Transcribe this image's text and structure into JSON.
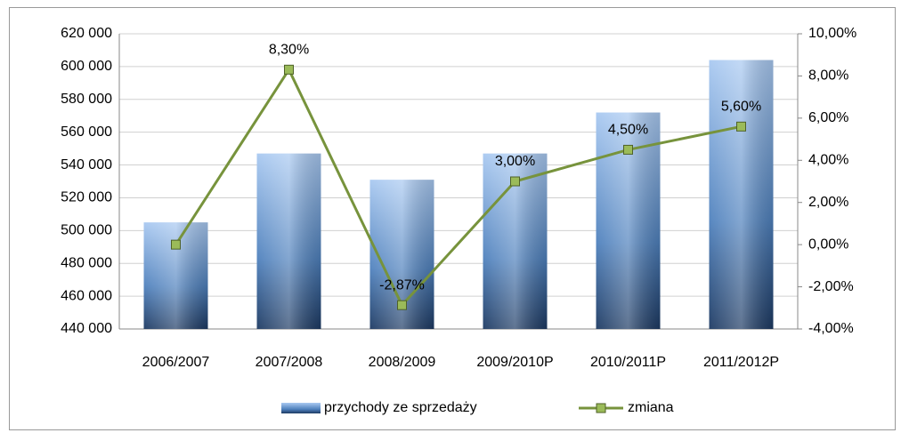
{
  "chart_data": {
    "type": "bar",
    "categories": [
      "2006/2007",
      "2007/2008",
      "2008/2009",
      "2009/2010P",
      "2010/2011P",
      "2011/2012P"
    ],
    "series": [
      {
        "name": "przychody ze sprzedaży",
        "color": "#4f81bd",
        "values": [
          505000,
          547000,
          531000,
          547000,
          572000,
          604000
        ]
      },
      {
        "name": "zmiana",
        "color": "#77933c",
        "axis": "y2",
        "type": "line",
        "values": [
          0,
          8.3,
          -2.87,
          3.0,
          4.5,
          5.6
        ],
        "value_labels": [
          null,
          "8,30%",
          "-2,87%",
          "3,00%",
          "4,50%",
          "5,60%"
        ]
      }
    ],
    "ylim": [
      440000,
      620000
    ],
    "yticks": [
      {
        "value": 440000,
        "label": "440 000"
      },
      {
        "value": 460000,
        "label": "460 000"
      },
      {
        "value": 480000,
        "label": "480 000"
      },
      {
        "value": 500000,
        "label": "500 000"
      },
      {
        "value": 520000,
        "label": "520 000"
      },
      {
        "value": 540000,
        "label": "540 000"
      },
      {
        "value": 560000,
        "label": "560 000"
      },
      {
        "value": 580000,
        "label": "580 000"
      },
      {
        "value": 600000,
        "label": "600 000"
      },
      {
        "value": 620000,
        "label": "620 000"
      }
    ],
    "y2lim": [
      -4,
      10
    ],
    "y2ticks": [
      {
        "value": -4,
        "label": "-4,00%"
      },
      {
        "value": -2,
        "label": "-2,00%"
      },
      {
        "value": 0,
        "label": "0,00%"
      },
      {
        "value": 2,
        "label": "2,00%"
      },
      {
        "value": 4,
        "label": "4,00%"
      },
      {
        "value": 6,
        "label": "6,00%"
      },
      {
        "value": 8,
        "label": "8,00%"
      },
      {
        "value": 10,
        "label": "10,00%"
      }
    ],
    "grid": true,
    "legend": "bottom"
  }
}
